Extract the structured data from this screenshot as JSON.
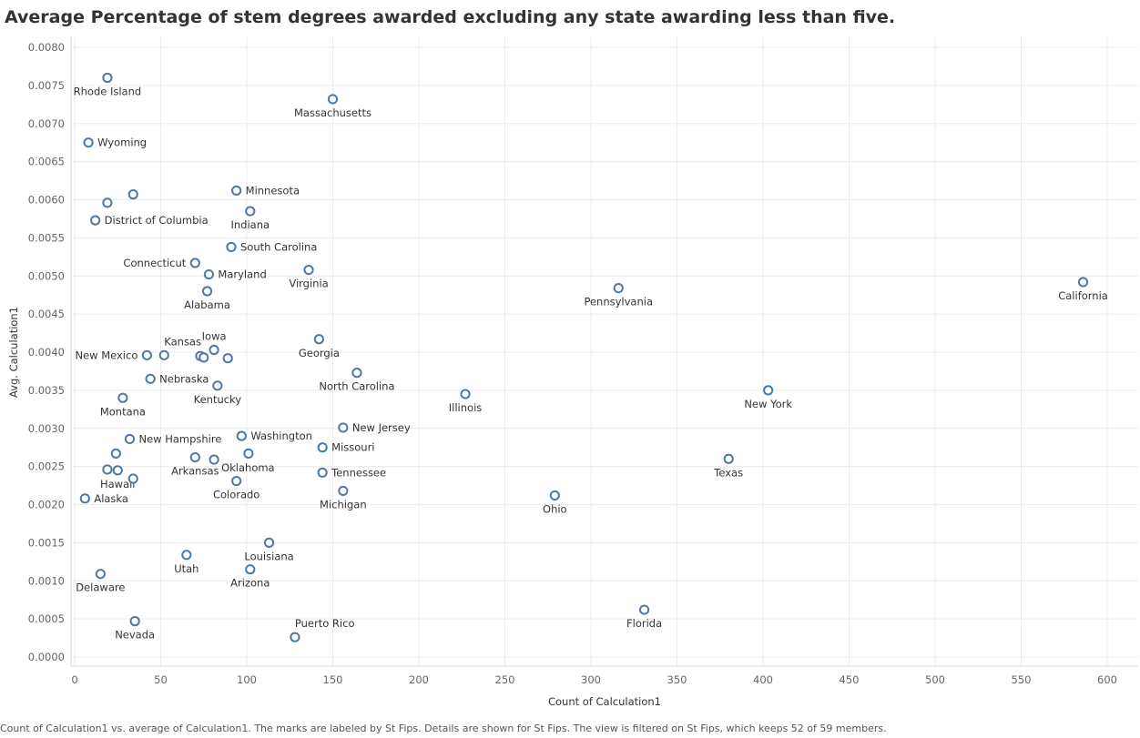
{
  "chart_data": {
    "type": "scatter",
    "title": "Average Percentage of stem degrees awarded excluding any state awarding less than five.",
    "xlabel": "Count of Calculation1",
    "ylabel": "Avg. Calculation1",
    "xlim": [
      0,
      620
    ],
    "ylim": [
      0,
      0.008
    ],
    "xticks": [
      0,
      50,
      100,
      150,
      200,
      250,
      300,
      350,
      400,
      450,
      500,
      550,
      600
    ],
    "yticks": [
      "0.0000",
      "0.0005",
      "0.0010",
      "0.0015",
      "0.0020",
      "0.0025",
      "0.0030",
      "0.0035",
      "0.0040",
      "0.0045",
      "0.0050",
      "0.0055",
      "0.0060",
      "0.0065",
      "0.0070",
      "0.0075",
      "0.0080"
    ],
    "grid": true,
    "marker_color": "#4e79a7",
    "points": [
      {
        "label": "Rhode Island",
        "x": 19,
        "y": 0.0076,
        "pos": "below"
      },
      {
        "label": "Massachusetts",
        "x": 150,
        "y": 0.00732,
        "pos": "below"
      },
      {
        "label": "Wyoming",
        "x": 8,
        "y": 0.00675,
        "pos": "right"
      },
      {
        "label": "",
        "x": 34,
        "y": 0.00607,
        "pos": "none"
      },
      {
        "label": "",
        "x": 19,
        "y": 0.00596,
        "pos": "none"
      },
      {
        "label": "Minnesota",
        "x": 94,
        "y": 0.00612,
        "pos": "right"
      },
      {
        "label": "Indiana",
        "x": 102,
        "y": 0.00585,
        "pos": "below"
      },
      {
        "label": "District of Columbia",
        "x": 12,
        "y": 0.00573,
        "pos": "right"
      },
      {
        "label": "South Carolina",
        "x": 91,
        "y": 0.00538,
        "pos": "right"
      },
      {
        "label": "Connecticut",
        "x": 70,
        "y": 0.00517,
        "pos": "left"
      },
      {
        "label": "Virginia",
        "x": 136,
        "y": 0.00508,
        "pos": "below"
      },
      {
        "label": "Maryland",
        "x": 78,
        "y": 0.00502,
        "pos": "right"
      },
      {
        "label": "California",
        "x": 586,
        "y": 0.00492,
        "pos": "below"
      },
      {
        "label": "Pennsylvania",
        "x": 316,
        "y": 0.00484,
        "pos": "below"
      },
      {
        "label": "Alabama",
        "x": 77,
        "y": 0.0048,
        "pos": "below"
      },
      {
        "label": "Georgia",
        "x": 142,
        "y": 0.00417,
        "pos": "below"
      },
      {
        "label": "Iowa",
        "x": 81,
        "y": 0.00403,
        "pos": "above"
      },
      {
        "label": "Kansas",
        "x": 52,
        "y": 0.00396,
        "pos": "aboveright"
      },
      {
        "label": "New Mexico",
        "x": 42,
        "y": 0.00396,
        "pos": "left"
      },
      {
        "label": "",
        "x": 73,
        "y": 0.00395,
        "pos": "none"
      },
      {
        "label": "",
        "x": 75,
        "y": 0.00393,
        "pos": "none"
      },
      {
        "label": "",
        "x": 89,
        "y": 0.00392,
        "pos": "none"
      },
      {
        "label": "North Carolina",
        "x": 164,
        "y": 0.00373,
        "pos": "below"
      },
      {
        "label": "Nebraska",
        "x": 44,
        "y": 0.00365,
        "pos": "right"
      },
      {
        "label": "Kentucky",
        "x": 83,
        "y": 0.00356,
        "pos": "below"
      },
      {
        "label": "New York",
        "x": 403,
        "y": 0.0035,
        "pos": "below"
      },
      {
        "label": "Illinois",
        "x": 227,
        "y": 0.00345,
        "pos": "below"
      },
      {
        "label": "Montana",
        "x": 28,
        "y": 0.0034,
        "pos": "below"
      },
      {
        "label": "New Jersey",
        "x": 156,
        "y": 0.00301,
        "pos": "right"
      },
      {
        "label": "Washington",
        "x": 97,
        "y": 0.0029,
        "pos": "right"
      },
      {
        "label": "New Hampshire",
        "x": 32,
        "y": 0.00286,
        "pos": "right"
      },
      {
        "label": "Missouri",
        "x": 144,
        "y": 0.00275,
        "pos": "right"
      },
      {
        "label": "",
        "x": 24,
        "y": 0.00267,
        "pos": "none"
      },
      {
        "label": "",
        "x": 101,
        "y": 0.00267,
        "pos": "none"
      },
      {
        "label": "Arkansas",
        "x": 70,
        "y": 0.00262,
        "pos": "below"
      },
      {
        "label": "Texas",
        "x": 380,
        "y": 0.0026,
        "pos": "below"
      },
      {
        "label": "Oklahoma",
        "x": 81,
        "y": 0.00259,
        "pos": "belowright"
      },
      {
        "label": "",
        "x": 19,
        "y": 0.00246,
        "pos": "none"
      },
      {
        "label": "Hawaii",
        "x": 25,
        "y": 0.00245,
        "pos": "below"
      },
      {
        "label": "Tennessee",
        "x": 144,
        "y": 0.00242,
        "pos": "right"
      },
      {
        "label": "",
        "x": 34,
        "y": 0.00234,
        "pos": "none"
      },
      {
        "label": "Colorado",
        "x": 94,
        "y": 0.00231,
        "pos": "below"
      },
      {
        "label": "Michigan",
        "x": 156,
        "y": 0.00218,
        "pos": "below"
      },
      {
        "label": "Ohio",
        "x": 279,
        "y": 0.00212,
        "pos": "below"
      },
      {
        "label": "Alaska",
        "x": 6,
        "y": 0.00208,
        "pos": "right"
      },
      {
        "label": "Louisiana",
        "x": 113,
        "y": 0.0015,
        "pos": "below"
      },
      {
        "label": "Utah",
        "x": 65,
        "y": 0.00134,
        "pos": "below"
      },
      {
        "label": "Arizona",
        "x": 102,
        "y": 0.00115,
        "pos": "below"
      },
      {
        "label": "Delaware",
        "x": 15,
        "y": 0.00109,
        "pos": "below"
      },
      {
        "label": "Florida",
        "x": 331,
        "y": 0.00062,
        "pos": "below"
      },
      {
        "label": "Nevada",
        "x": 35,
        "y": 0.00047,
        "pos": "below"
      },
      {
        "label": "Puerto Rico",
        "x": 128,
        "y": 0.00026,
        "pos": "aboveright"
      }
    ]
  },
  "footnote": "Count of Calculation1 vs. average of Calculation1.  The marks are labeled by St Fips.  Details are shown for St Fips. The view is filtered on St Fips, which keeps 52 of 59 members."
}
